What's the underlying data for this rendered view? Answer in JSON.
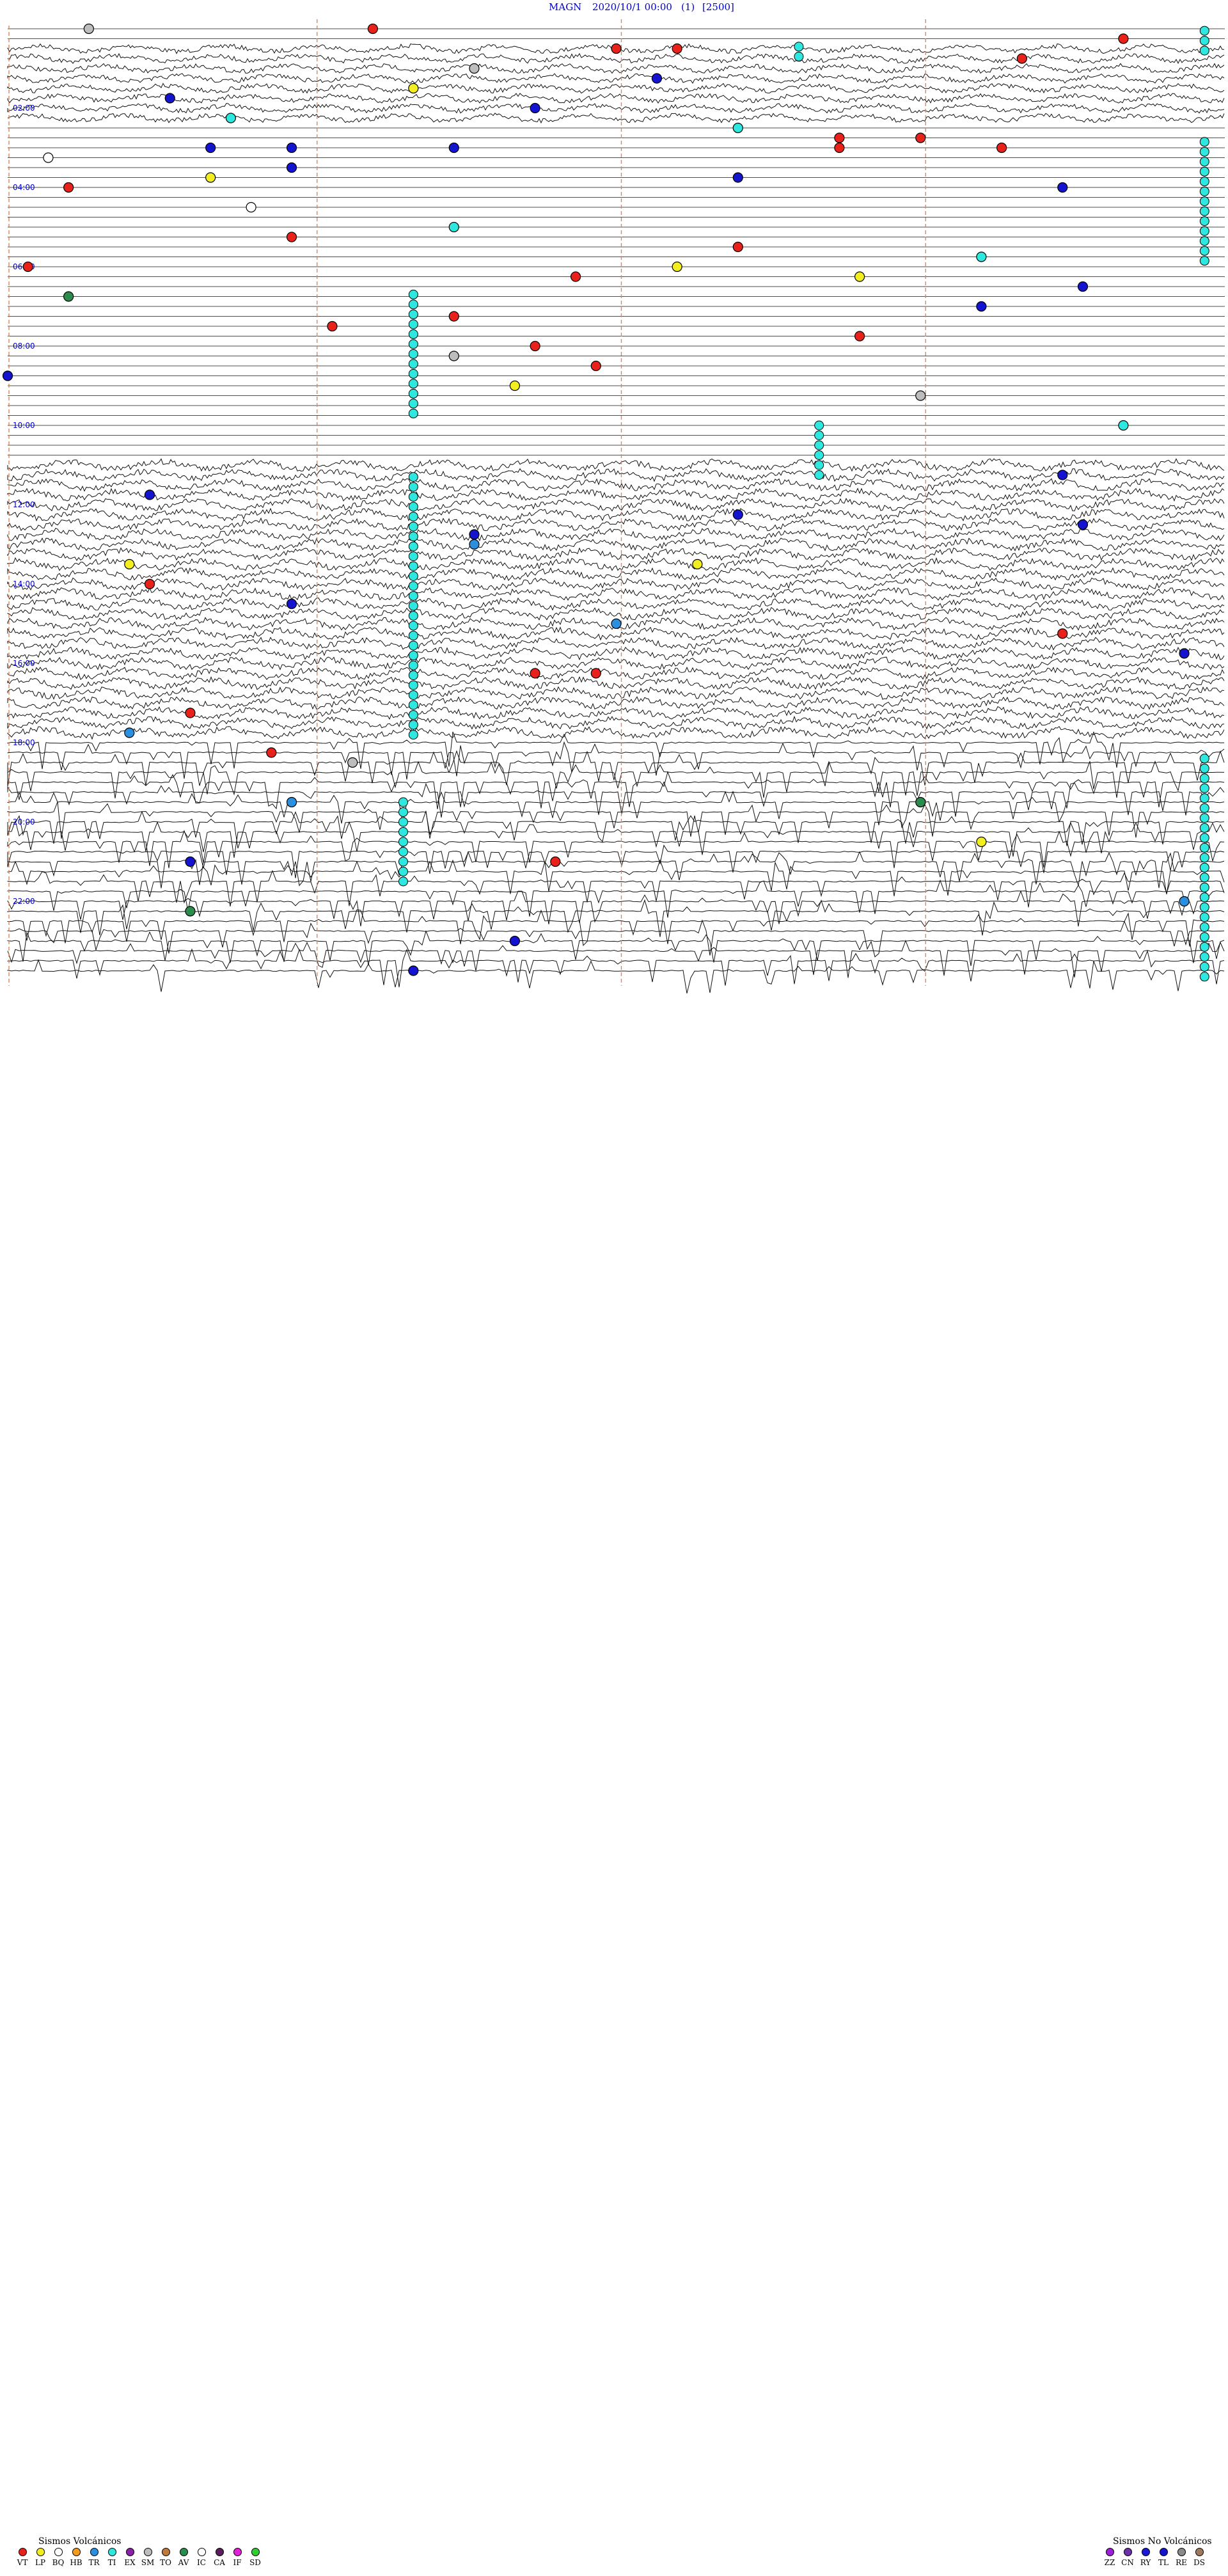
{
  "header": {
    "station": "MAGN",
    "start_datetime": "2020/10/1 00:00",
    "channel": "(1)",
    "scale": "[2500]"
  },
  "chart_data": {
    "type": "helicorder",
    "station": "MAGN",
    "start": "2020/10/1 00:00",
    "row_minutes": 15,
    "hour_labels": [
      "02:00",
      "04:00",
      "06:00",
      "08:00",
      "10:00",
      "12:00",
      "14:00",
      "16:00",
      "18:00",
      "20:00",
      "22:00"
    ],
    "noise_periods": [
      {
        "from_hour": 0.5,
        "to_hour": 2.5,
        "level": "high"
      },
      {
        "from_hour": 11.0,
        "to_hour": 18.0,
        "level": "very high"
      },
      {
        "from_hour": 18.0,
        "to_hour": 24.0,
        "level": "spikes"
      }
    ],
    "events": [
      {
        "hour": 0.1,
        "minute": 18,
        "class": "VT"
      },
      {
        "hour": 0.2,
        "minute": 4,
        "class": "SM"
      },
      {
        "hour": 0.3,
        "minute": 55,
        "class": "VT"
      },
      {
        "hour": 0.5,
        "minute": 30,
        "class": "VT"
      },
      {
        "hour": 0.6,
        "minute": 33,
        "class": "VT"
      },
      {
        "hour": 0.8,
        "minute": 50,
        "class": "VT"
      },
      {
        "hour": 1.1,
        "minute": 23,
        "class": "SM"
      },
      {
        "hour": 1.3,
        "minute": 32,
        "class": "TL"
      },
      {
        "hour": 1.5,
        "minute": 20,
        "class": "LP"
      },
      {
        "hour": 1.8,
        "minute": 8,
        "class": "TL"
      },
      {
        "hour": 2.0,
        "minute": 26,
        "class": "TL"
      },
      {
        "hour": 2.3,
        "minute": 11,
        "class": "TI"
      },
      {
        "hour": 2.6,
        "minute": 36,
        "class": "TI"
      },
      {
        "hour": 2.8,
        "minute": 41,
        "class": "VT"
      },
      {
        "hour": 2.8,
        "minute": 45,
        "class": "VT"
      },
      {
        "hour": 3.0,
        "minute": 41,
        "class": "VT"
      },
      {
        "hour": 3.0,
        "minute": 49,
        "class": "VT"
      },
      {
        "hour": 3.1,
        "minute": 10,
        "class": "TL"
      },
      {
        "hour": 3.1,
        "minute": 14,
        "class": "TL"
      },
      {
        "hour": 3.1,
        "minute": 22,
        "class": "TL"
      },
      {
        "hour": 3.3,
        "minute": 2,
        "class": "IC"
      },
      {
        "hour": 3.5,
        "minute": 14,
        "class": "TL"
      },
      {
        "hour": 3.8,
        "minute": 10,
        "class": "LP"
      },
      {
        "hour": 3.9,
        "minute": 36,
        "class": "TL"
      },
      {
        "hour": 4.0,
        "minute": 3,
        "class": "VT"
      },
      {
        "hour": 4.2,
        "minute": 52,
        "class": "TL"
      },
      {
        "hour": 4.5,
        "minute": 12,
        "class": "IC"
      },
      {
        "hour": 5.2,
        "minute": 22,
        "class": "TI"
      },
      {
        "hour": 5.4,
        "minute": 14,
        "class": "VT"
      },
      {
        "hour": 5.6,
        "minute": 36,
        "class": "VT"
      },
      {
        "hour": 5.8,
        "minute": 48,
        "class": "TI"
      },
      {
        "hour": 6.0,
        "minute": 1,
        "class": "VT"
      },
      {
        "hour": 6.2,
        "minute": 33,
        "class": "LP"
      },
      {
        "hour": 6.3,
        "minute": 42,
        "class": "LP"
      },
      {
        "hour": 6.4,
        "minute": 28,
        "class": "VT"
      },
      {
        "hour": 6.5,
        "minute": 53,
        "class": "TL"
      },
      {
        "hour": 6.8,
        "minute": 3,
        "class": "AV"
      },
      {
        "hour": 7.1,
        "minute": 48,
        "class": "TL"
      },
      {
        "hour": 7.3,
        "minute": 22,
        "class": "VT"
      },
      {
        "hour": 7.6,
        "minute": 16,
        "class": "VT"
      },
      {
        "hour": 7.9,
        "minute": 42,
        "class": "VT"
      },
      {
        "hour": 8.1,
        "minute": 26,
        "class": "VT"
      },
      {
        "hour": 8.3,
        "minute": 22,
        "class": "SM"
      },
      {
        "hour": 8.6,
        "minute": 29,
        "class": "VT"
      },
      {
        "hour": 8.9,
        "minute": 0,
        "class": "TL"
      },
      {
        "hour": 9.2,
        "minute": 25,
        "class": "LP"
      },
      {
        "hour": 9.4,
        "minute": 45,
        "class": "SM"
      },
      {
        "hour": 10.1,
        "minute": 55,
        "class": "TI"
      },
      {
        "hour": 11.3,
        "minute": 52,
        "class": "TL"
      },
      {
        "hour": 11.8,
        "minute": 7,
        "class": "TL"
      },
      {
        "hour": 12.3,
        "minute": 36,
        "class": "TL"
      },
      {
        "hour": 12.6,
        "minute": 53,
        "class": "TL"
      },
      {
        "hour": 12.8,
        "minute": 23,
        "class": "TL"
      },
      {
        "hour": 13.1,
        "minute": 23,
        "class": "TR"
      },
      {
        "hour": 13.6,
        "minute": 6,
        "class": "LP"
      },
      {
        "hour": 13.6,
        "minute": 34,
        "class": "LP"
      },
      {
        "hour": 14.1,
        "minute": 7,
        "class": "VT"
      },
      {
        "hour": 14.6,
        "minute": 14,
        "class": "TL"
      },
      {
        "hour": 15.0,
        "minute": 30,
        "class": "TR"
      },
      {
        "hour": 15.3,
        "minute": 52,
        "class": "VT"
      },
      {
        "hour": 15.8,
        "minute": 58,
        "class": "TL"
      },
      {
        "hour": 16.3,
        "minute": 26,
        "class": "VT"
      },
      {
        "hour": 16.3,
        "minute": 29,
        "class": "VT"
      },
      {
        "hour": 17.4,
        "minute": 9,
        "class": "VT"
      },
      {
        "hour": 17.8,
        "minute": 6,
        "class": "TR"
      },
      {
        "hour": 18.3,
        "minute": 13,
        "class": "VT"
      },
      {
        "hour": 18.5,
        "minute": 17,
        "class": "SM"
      },
      {
        "hour": 19.5,
        "minute": 14,
        "class": "TR"
      },
      {
        "hour": 19.6,
        "minute": 45,
        "class": "AV"
      },
      {
        "hour": 20.6,
        "minute": 48,
        "class": "LP"
      },
      {
        "hour": 21.0,
        "minute": 9,
        "class": "TL"
      },
      {
        "hour": 21.2,
        "minute": 27,
        "class": "VT"
      },
      {
        "hour": 22.1,
        "minute": 58,
        "class": "TR"
      },
      {
        "hour": 22.4,
        "minute": 9,
        "class": "AV"
      },
      {
        "hour": 23.2,
        "minute": 25,
        "class": "TL"
      },
      {
        "hour": 23.8,
        "minute": 20,
        "class": "TL"
      }
    ],
    "swarms": [
      {
        "minute": 59,
        "from_hour": 0.05,
        "to_hour": 0.55,
        "class": "TI"
      },
      {
        "minute": 39,
        "from_hour": 0.45,
        "to_hour": 0.75,
        "class": "TI"
      },
      {
        "minute": 59,
        "from_hour": 2.85,
        "to_hour": 6.0,
        "class": "TI"
      },
      {
        "minute": 20,
        "from_hour": 6.7,
        "to_hour": 9.7,
        "class": "TI"
      },
      {
        "minute": 40,
        "from_hour": 10.0,
        "to_hour": 11.3,
        "class": "TI"
      },
      {
        "minute": 20,
        "from_hour": 11.3,
        "to_hour": 17.8,
        "class": "TI"
      },
      {
        "minute": 59,
        "from_hour": 18.4,
        "to_hour": 24.0,
        "class": "TI"
      },
      {
        "minute": 19.5,
        "from_hour": 19.5,
        "to_hour": 21.6,
        "class": "TI"
      }
    ]
  },
  "legend_volcanic": {
    "title": "Sismos Volcánicos",
    "items": [
      {
        "code": "VT",
        "color": "#e8211a"
      },
      {
        "code": "LP",
        "color": "#f2ee1f"
      },
      {
        "code": "BQ",
        "color": "#ffffff"
      },
      {
        "code": "HB",
        "color": "#f39a21"
      },
      {
        "code": "TR",
        "color": "#2b8fe0"
      },
      {
        "code": "TI",
        "color": "#2ee8e0"
      },
      {
        "code": "EX",
        "color": "#8a1fa8"
      },
      {
        "code": "SM",
        "color": "#bdbdbd"
      },
      {
        "code": "TO",
        "color": "#c07b3a"
      },
      {
        "code": "AV",
        "color": "#2c8c4e"
      },
      {
        "code": "IC",
        "color": "#ffffff"
      },
      {
        "code": "CA",
        "color": "#5a1f5a"
      },
      {
        "code": "IF",
        "color": "#e21fd6"
      },
      {
        "code": "SD",
        "color": "#33cc33"
      }
    ]
  },
  "legend_nonvolcanic": {
    "title": "Sismos No Volcánicos",
    "items": [
      {
        "code": "ZZ",
        "color": "#9a1fd6"
      },
      {
        "code": "CN",
        "color": "#6b2fa8"
      },
      {
        "code": "RY",
        "color": "#1a1ad6"
      },
      {
        "code": "TL",
        "color": "#1414d0"
      },
      {
        "code": "RE",
        "color": "#8a8a8a"
      },
      {
        "code": "DS",
        "color": "#a07a60"
      }
    ]
  }
}
